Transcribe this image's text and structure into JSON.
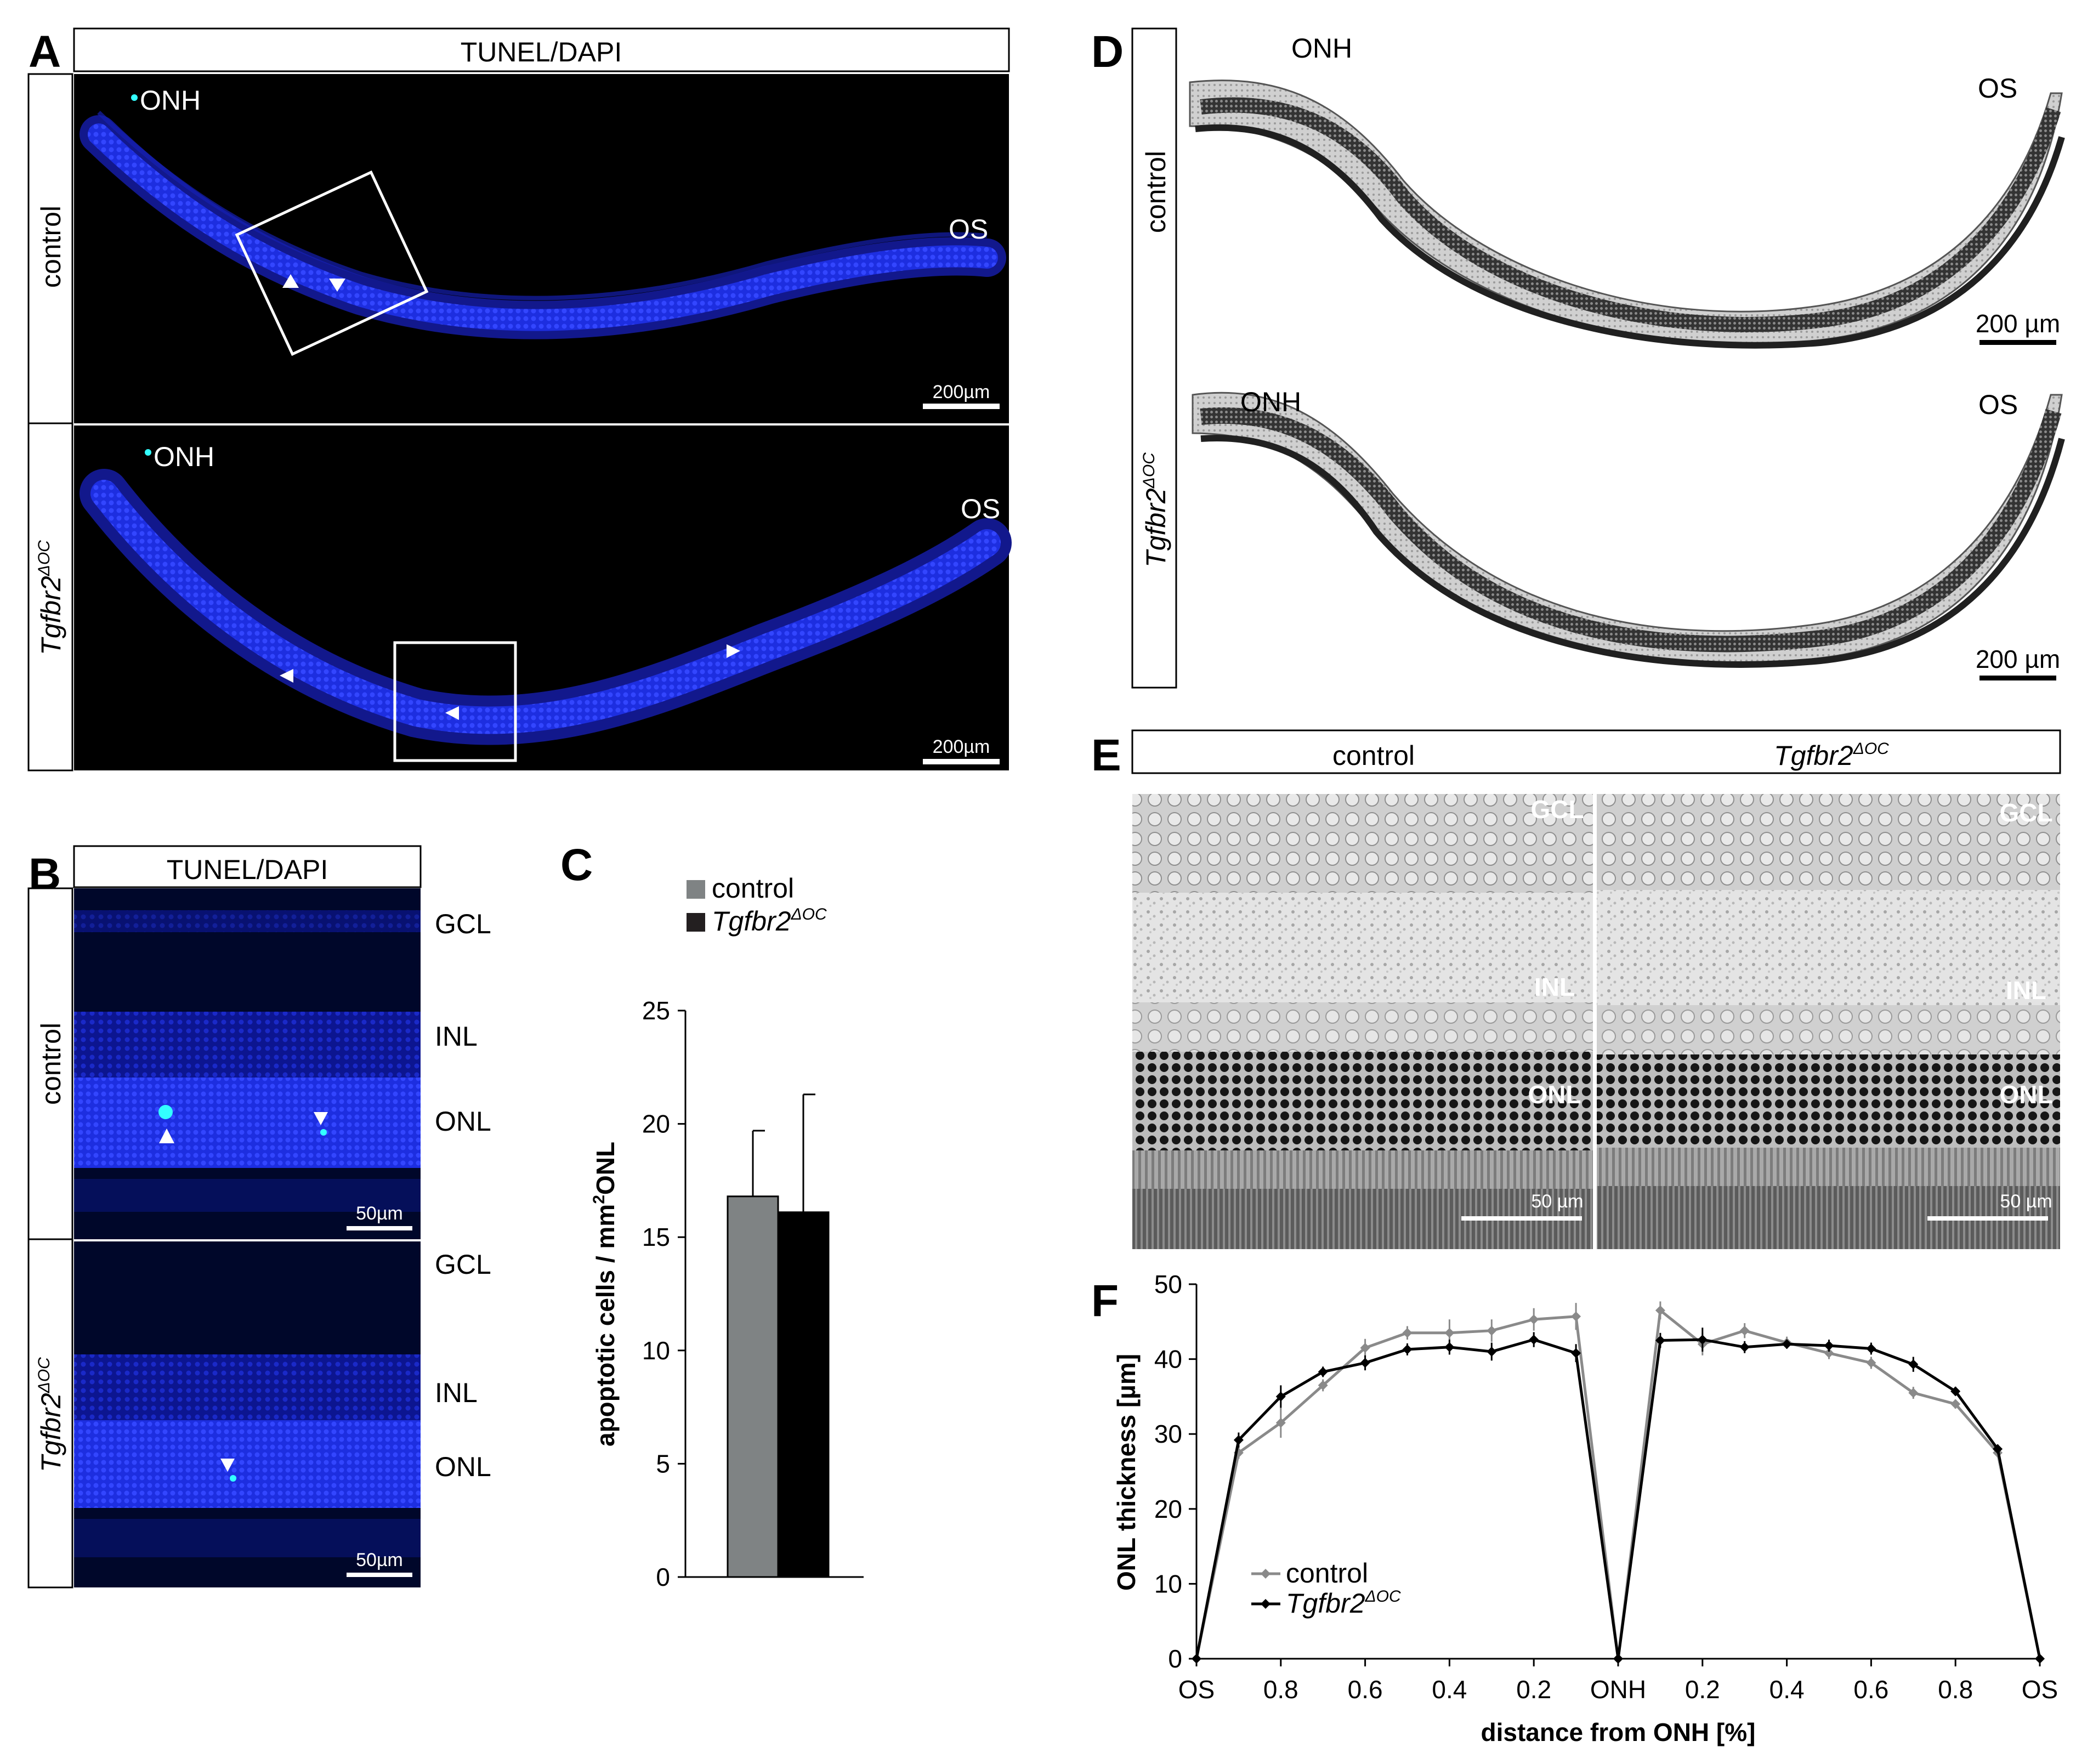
{
  "panels": {
    "A": {
      "label": "A",
      "header": "TUNEL/DAPI",
      "rows": [
        {
          "genotype": "control",
          "onh": "ONH",
          "os": "OS",
          "scale": "200µm"
        },
        {
          "genotype": "Tgfbr2",
          "genotype_sup": "ΔOC",
          "onh": "ONH",
          "os": "OS",
          "scale": "200µm"
        }
      ]
    },
    "B": {
      "label": "B",
      "header": "TUNEL/DAPI",
      "rows": [
        {
          "genotype": "control",
          "scale": "50µm"
        },
        {
          "genotype": "Tgfbr2",
          "genotype_sup": "ΔOC",
          "scale": "50µm"
        }
      ],
      "layers": [
        "GCL",
        "INL",
        "ONL"
      ]
    },
    "D": {
      "label": "D",
      "rows": [
        {
          "genotype": "control",
          "onh": "ONH",
          "os": "OS",
          "scale": "200 µm"
        },
        {
          "genotype": "Tgfbr2",
          "genotype_sup": "ΔOC",
          "onh": "ONH",
          "os": "OS",
          "scale": "200 µm"
        }
      ]
    },
    "E": {
      "label": "E",
      "columns": [
        {
          "genotype": "control",
          "scale": "50 µm"
        },
        {
          "genotype": "Tgfbr2",
          "genotype_sup": "ΔOC",
          "scale": "50 µm"
        }
      ],
      "layers": [
        "GCL",
        "INL",
        "ONL"
      ]
    }
  },
  "chart_data": [
    {
      "panel": "C",
      "type": "bar",
      "categories": [
        "control",
        "Tgfbr2ΔOC"
      ],
      "values": [
        16.8,
        16.1
      ],
      "errors": [
        2.9,
        5.2
      ],
      "colors": [
        "#7f8384",
        "#000000"
      ],
      "legend": [
        {
          "name": "control",
          "name_sup": "",
          "color": "#7f8384"
        },
        {
          "name": "Tgfbr2",
          "name_sup": "ΔOC",
          "color": "#231f20"
        }
      ],
      "ylabel": "apoptotic cells / mm",
      "ylabel_sup": "2",
      "ylabel_tail": "ONL",
      "ylim": [
        0,
        25
      ],
      "yticks": [
        0,
        5,
        10,
        15,
        20,
        25
      ],
      "xlabel": ""
    },
    {
      "panel": "F",
      "type": "line",
      "x_tick_labels": [
        "OS",
        "0.8",
        "0.6",
        "0.4",
        "0.2",
        "ONH",
        "0.2",
        "0.4",
        "0.6",
        "0.8",
        "OS"
      ],
      "xlabel": "distance from ONH [%]",
      "ylabel": "ONL thickness [µm]",
      "ylim": [
        0,
        50
      ],
      "yticks": [
        0,
        10,
        20,
        30,
        40,
        50
      ],
      "legend_position": "bottom-left",
      "series": [
        {
          "name": "control",
          "name_sup": "",
          "color": "#8a8a8a",
          "left": {
            "x": [
              1.0,
              0.9,
              0.8,
              0.7,
              0.6,
              0.5,
              0.4,
              0.3,
              0.2,
              0.1,
              0.0
            ],
            "y": [
              0,
              27.5,
              31.5,
              36.5,
              41.5,
              43.5,
              43.5,
              43.8,
              45.3,
              45.7,
              0
            ],
            "err": [
              0,
              0.8,
              2.0,
              0.8,
              1.2,
              0.9,
              1.8,
              1.5,
              1.5,
              1.8,
              0
            ]
          },
          "right": {
            "x": [
              0.0,
              0.1,
              0.2,
              0.3,
              0.4,
              0.5,
              0.6,
              0.7,
              0.8,
              0.9,
              1.0
            ],
            "y": [
              0,
              46.5,
              42.0,
              43.8,
              42.2,
              40.8,
              39.5,
              35.5,
              34.0,
              27.5,
              0
            ],
            "err": [
              0,
              1.2,
              1.5,
              1.0,
              0.8,
              0.8,
              0.8,
              0.8,
              0.6,
              0.6,
              0
            ]
          }
        },
        {
          "name": "Tgfbr2",
          "name_sup": "ΔOC",
          "color": "#000000",
          "left": {
            "x": [
              1.0,
              0.9,
              0.8,
              0.7,
              0.6,
              0.5,
              0.4,
              0.3,
              0.2,
              0.1,
              0.0
            ],
            "y": [
              0,
              29.2,
              35.0,
              38.3,
              39.5,
              41.3,
              41.6,
              41.0,
              42.6,
              40.8,
              0
            ],
            "err": [
              0,
              1.0,
              1.5,
              0.7,
              1.0,
              0.8,
              1.0,
              1.2,
              1.0,
              1.2,
              0
            ]
          },
          "right": {
            "x": [
              0.0,
              0.1,
              0.2,
              0.3,
              0.4,
              0.5,
              0.6,
              0.7,
              0.8,
              0.9,
              1.0
            ],
            "y": [
              0,
              42.5,
              42.6,
              41.6,
              42.0,
              41.8,
              41.4,
              39.3,
              35.7,
              28.0,
              0
            ],
            "err": [
              0,
              1.0,
              1.6,
              0.8,
              0.6,
              0.8,
              0.8,
              1.0,
              0.6,
              0.6,
              0
            ]
          }
        }
      ]
    }
  ]
}
